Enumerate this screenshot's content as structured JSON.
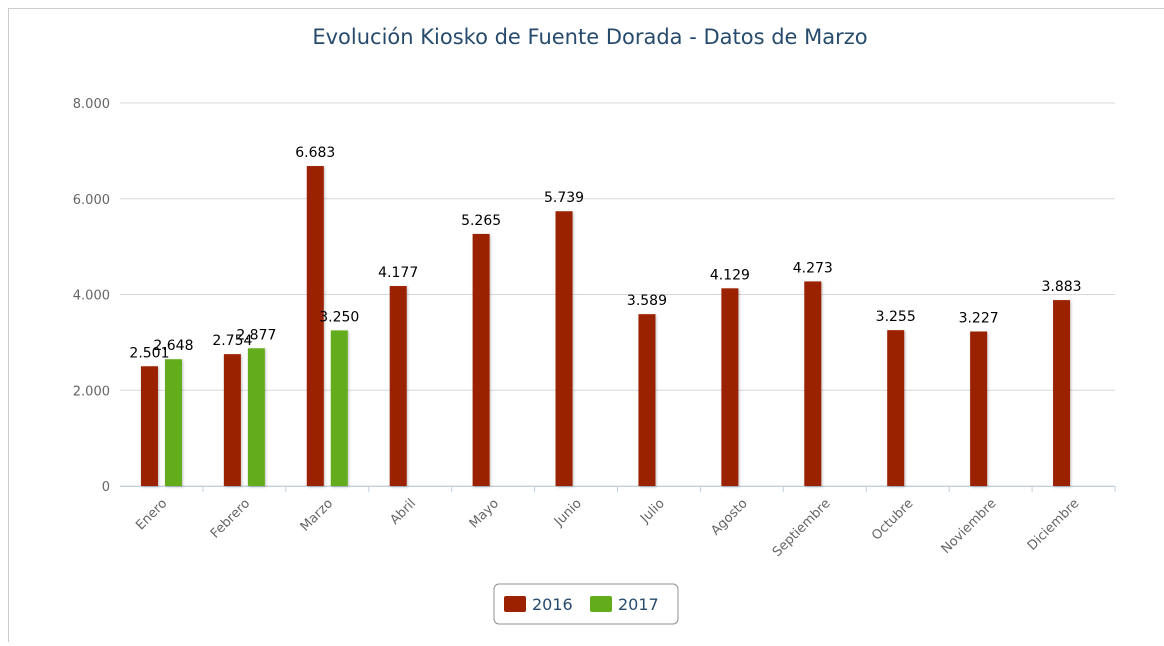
{
  "chart_data": {
    "type": "bar",
    "title": "Evolución Kiosko de Fuente Dorada - Datos de Marzo",
    "categories": [
      "Enero",
      "Febrero",
      "Marzo",
      "Abril",
      "Mayo",
      "Junio",
      "Julio",
      "Agosto",
      "Septiembre",
      "Octubre",
      "Noviembre",
      "Diciembre"
    ],
    "series": [
      {
        "name": "2016",
        "color": "#9b2100",
        "values": [
          2501,
          2754,
          6683,
          4177,
          5265,
          5739,
          3589,
          4129,
          4273,
          3255,
          3227,
          3883
        ],
        "value_labels": [
          "2.501",
          "2.754",
          "6.683",
          "4.177",
          "5.265",
          "5.739",
          "3.589",
          "4.129",
          "4.273",
          "3.255",
          "3.227",
          "3.883"
        ]
      },
      {
        "name": "2017",
        "color": "#63ad1c",
        "values": [
          2648,
          2877,
          3250,
          null,
          null,
          null,
          null,
          null,
          null,
          null,
          null,
          null
        ],
        "value_labels": [
          "2.648",
          "2.877",
          "3.250",
          null,
          null,
          null,
          null,
          null,
          null,
          null,
          null,
          null
        ]
      }
    ],
    "ylim": [
      0,
      8000
    ],
    "yticks": [
      0,
      {
        "value": 2000,
        "label": "2.000"
      },
      {
        "value": 4000,
        "label": "4.000"
      },
      {
        "value": 6000,
        "label": "6.000"
      },
      {
        "value": 8000,
        "label": "8.000"
      }
    ],
    "grid": true,
    "legend": "bottom"
  }
}
